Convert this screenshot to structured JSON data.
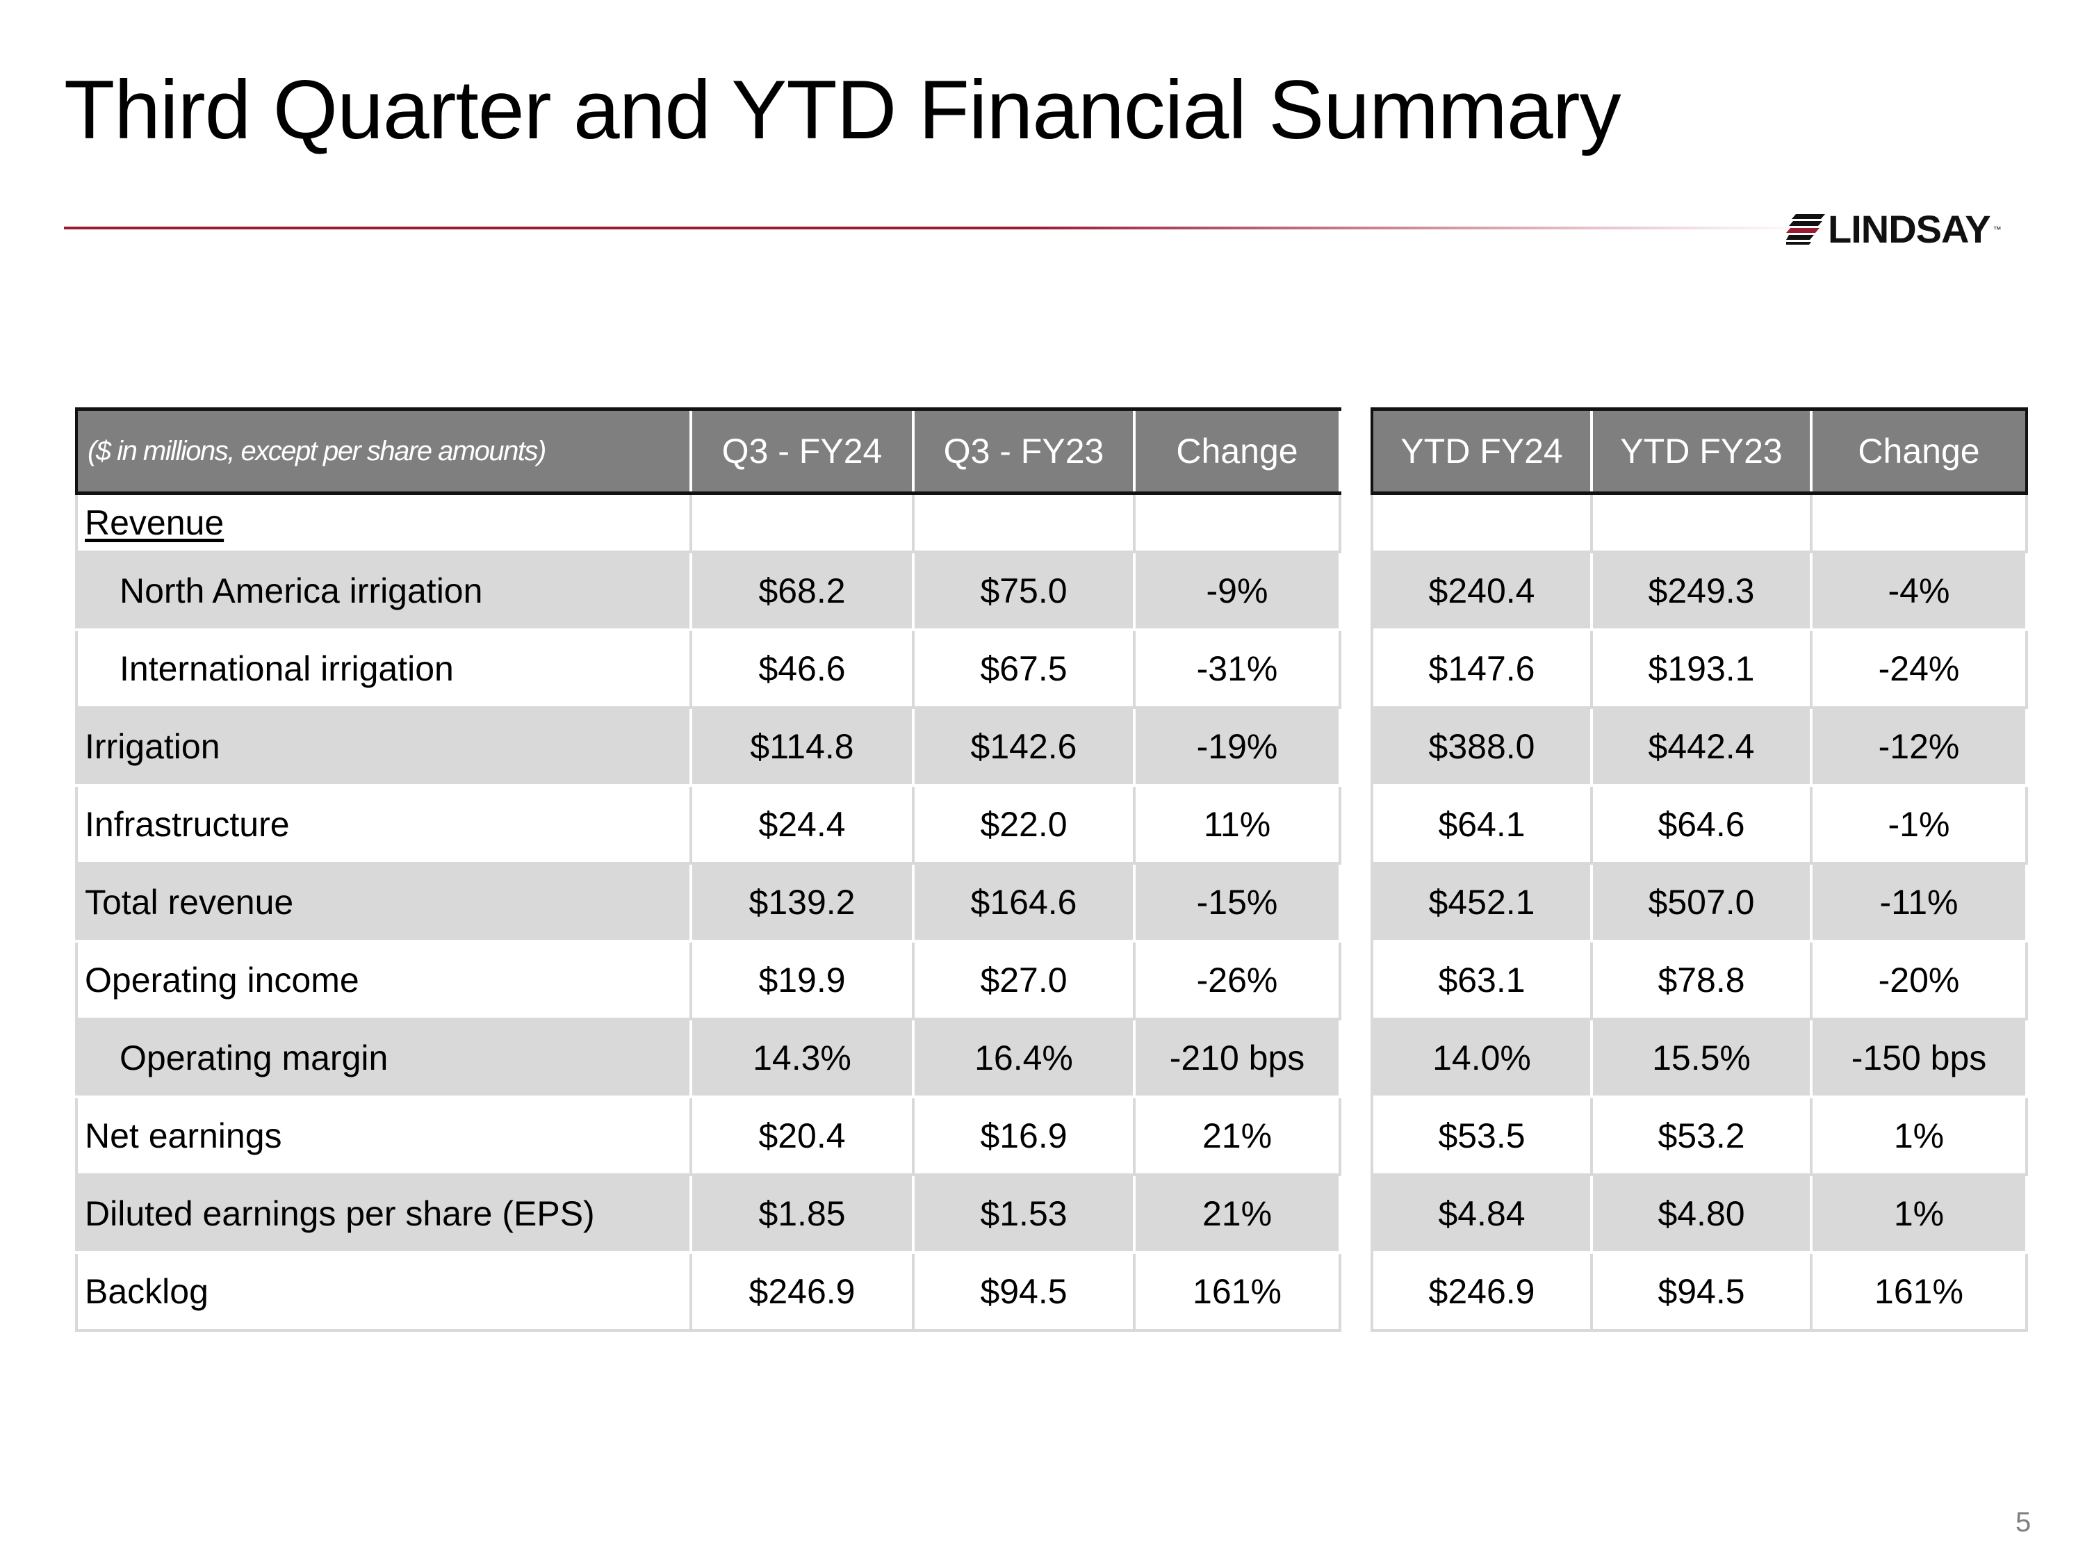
{
  "slide": {
    "title": "Third Quarter and YTD Financial Summary",
    "page_number": "5",
    "accent_color": "#9b1b33",
    "header_fill": "#7f7f7f",
    "row_shade": "#d9d9d9"
  },
  "logo": {
    "text": "LINDSAY",
    "trademark": "™"
  },
  "table": {
    "units_note": "($ in millions, except per share amounts)",
    "columns": [
      "Q3 - FY24",
      "Q3 - FY23",
      "Change",
      "YTD FY24",
      "YTD FY23",
      "Change"
    ],
    "section_label": "Revenue",
    "rows": [
      {
        "label": "North America irrigation",
        "values": [
          "$68.2",
          "$75.0",
          "-9%",
          "$240.4",
          "$249.3",
          "-4%"
        ]
      },
      {
        "label": "International irrigation",
        "values": [
          "$46.6",
          "$67.5",
          "-31%",
          "$147.6",
          "$193.1",
          "-24%"
        ]
      },
      {
        "label": "Irrigation",
        "values": [
          "$114.8",
          "$142.6",
          "-19%",
          "$388.0",
          "$442.4",
          "-12%"
        ]
      },
      {
        "label": "Infrastructure",
        "values": [
          "$24.4",
          "$22.0",
          "11%",
          "$64.1",
          "$64.6",
          "-1%"
        ]
      },
      {
        "label": "Total revenue",
        "values": [
          "$139.2",
          "$164.6",
          "-15%",
          "$452.1",
          "$507.0",
          "-11%"
        ]
      },
      {
        "label": "Operating income",
        "values": [
          "$19.9",
          "$27.0",
          "-26%",
          "$63.1",
          "$78.8",
          "-20%"
        ]
      },
      {
        "label": "Operating margin",
        "values": [
          "14.3%",
          "16.4%",
          "-210 bps",
          "14.0%",
          "15.5%",
          "-150 bps"
        ]
      },
      {
        "label": "Net earnings",
        "values": [
          "$20.4",
          "$16.9",
          "21%",
          "$53.5",
          "$53.2",
          "1%"
        ]
      },
      {
        "label": "Diluted earnings per share (EPS)",
        "values": [
          "$1.85",
          "$1.53",
          "21%",
          "$4.84",
          "$4.80",
          "1%"
        ]
      },
      {
        "label": "Backlog",
        "values": [
          "$246.9",
          "$94.5",
          "161%",
          "$246.9",
          "$94.5",
          "161%"
        ]
      }
    ]
  }
}
